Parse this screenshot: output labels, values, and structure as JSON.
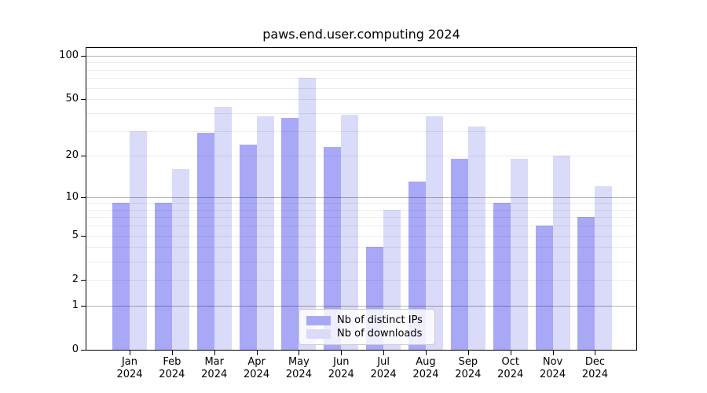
{
  "chart_data": {
    "type": "bar",
    "title": "paws.end.user.computing 2024",
    "categories": [
      "Jan",
      "Feb",
      "Mar",
      "Apr",
      "May",
      "Jun",
      "Jul",
      "Aug",
      "Sep",
      "Oct",
      "Nov",
      "Dec"
    ],
    "x_year": "2024",
    "series": [
      {
        "key": "distinct-ips",
        "name": "Nb of distinct IPs",
        "color": "#a8a8f7",
        "values": [
          9,
          9,
          29,
          24,
          37,
          23,
          4,
          13,
          19,
          9,
          6,
          7
        ]
      },
      {
        "key": "downloads",
        "name": "Nb of downloads",
        "color": "#dadaf9",
        "values": [
          30,
          16,
          44,
          38,
          70,
          39,
          8,
          38,
          32,
          19,
          20,
          12
        ]
      }
    ],
    "y_axis": {
      "scale": "log1p",
      "tick_labels": [
        0,
        1,
        2,
        5,
        10,
        20,
        50,
        100
      ],
      "major_gridlines": [
        1,
        10,
        100
      ],
      "minor_gridlines": [
        2,
        3,
        4,
        5,
        6,
        7,
        8,
        9,
        20,
        30,
        40,
        50,
        60,
        70,
        80,
        90
      ],
      "range": [
        0,
        113
      ]
    },
    "grid": {
      "major_color": "rgba(0,0,0,0.30)",
      "minor_color": "rgba(0,0,0,0.075)"
    },
    "legend": {
      "position": "lower center"
    }
  }
}
